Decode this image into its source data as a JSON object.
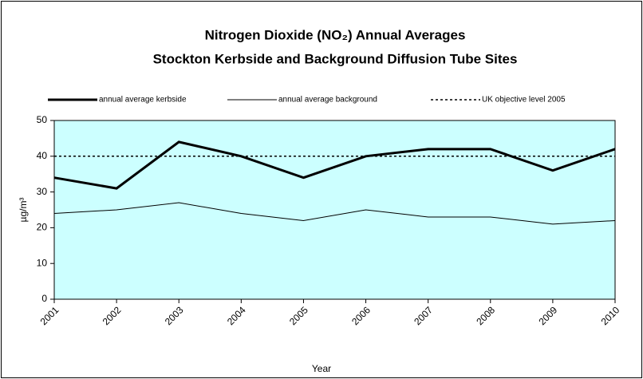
{
  "chart_data": {
    "type": "line",
    "title": [
      "Nitrogen Dioxide (NO₂) Annual Averages",
      "Stockton Kerbside and Background Diffusion Tube Sites"
    ],
    "x_label": "Year",
    "y_label": "µg/m³",
    "categories": [
      "2001",
      "2002",
      "2003",
      "2004",
      "2005",
      "2006",
      "2007",
      "2008",
      "2009",
      "2010"
    ],
    "series": [
      {
        "name": "annual average kerbside",
        "color": "#000000",
        "linestyle": "thick",
        "values": [
          34,
          31,
          44,
          40,
          34,
          40,
          42,
          42,
          36,
          42
        ]
      },
      {
        "name": "annual average background",
        "color": "#000000",
        "linestyle": "thin",
        "values": [
          24,
          25,
          27,
          24,
          22,
          25,
          23,
          23,
          21,
          22
        ]
      },
      {
        "name": "UK objective level 2005",
        "color": "#000000",
        "linestyle": "dotted",
        "values": [
          40,
          40,
          40,
          40,
          40,
          40,
          40,
          40,
          40,
          40
        ]
      }
    ],
    "ylim": [
      0,
      50
    ],
    "yticks": [
      0,
      10,
      20,
      30,
      40,
      50
    ],
    "grid": false,
    "plot_background": "#ccffff",
    "legend": "top"
  }
}
